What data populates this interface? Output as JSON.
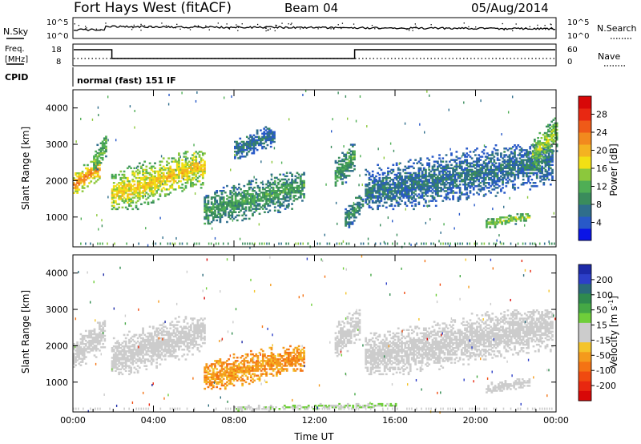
{
  "header": {
    "title": "Fort Hays West (fitACF)",
    "beam": "Beam 04",
    "date": "05/Aug/2014"
  },
  "noise_panel": {
    "left_label": "N.Sky",
    "left_ticks": [
      "10^5",
      "10^0"
    ],
    "right_ticks": [
      "10^5",
      "10^0"
    ],
    "right_label": "N.Search",
    "right_legend_line": "dotted"
  },
  "freq_panel": {
    "left_label_line1": "Freq.",
    "left_label_line2": "[MHz]",
    "left_ticks": [
      "18",
      "8"
    ],
    "right_ticks": [
      "60",
      "0"
    ],
    "right_label": "Nave",
    "cpid_label": "CPID",
    "cpid_text": "normal (fast) 151 IF"
  },
  "chart_data": [
    {
      "type": "heatmap",
      "name": "power",
      "ylabel": "Slant Range [km]",
      "xlabel": "Time UT",
      "xlim": [
        0,
        24
      ],
      "ylim": [
        180,
        4500
      ],
      "yticks": [
        "1000",
        "2000",
        "3000",
        "4000"
      ],
      "xticks": [
        "00:00",
        "04:00",
        "08:00",
        "12:00",
        "16:00",
        "20:00",
        "00:00"
      ],
      "colorbar": {
        "label": "Power [dB]",
        "ticks": [
          "4",
          "8",
          "12",
          "16",
          "20",
          "24",
          "28"
        ],
        "colors": [
          "#0a14e6",
          "#2859c8",
          "#2f6e8c",
          "#3a8c5c",
          "#4fae55",
          "#8cc83c",
          "#f2e014",
          "#f4b321",
          "#f28a1e",
          "#ef5a18",
          "#e82812",
          "#d80808"
        ]
      },
      "echo_regions": [
        {
          "t0": 0.0,
          "t1": 1.3,
          "r0": 1600,
          "r1": 2600,
          "level": 22
        },
        {
          "t0": 1.0,
          "t1": 1.6,
          "r0": 2200,
          "r1": 3200,
          "level": 12
        },
        {
          "t0": 1.9,
          "t1": 6.5,
          "r0": 1200,
          "r1": 2800,
          "level": 18
        },
        {
          "t0": 6.5,
          "t1": 11.5,
          "r0": 800,
          "r1": 2200,
          "level": 10
        },
        {
          "t0": 8.0,
          "t1": 10.0,
          "r0": 2600,
          "r1": 3500,
          "level": 6
        },
        {
          "t0": 13.0,
          "t1": 14.0,
          "r0": 1800,
          "r1": 3000,
          "level": 10
        },
        {
          "t0": 13.5,
          "t1": 14.4,
          "r0": 700,
          "r1": 1600,
          "level": 8
        },
        {
          "t0": 14.5,
          "t1": 23.8,
          "r0": 1200,
          "r1": 3000,
          "level": 6
        },
        {
          "t0": 20.5,
          "t1": 22.7,
          "r0": 700,
          "r1": 1100,
          "level": 14
        },
        {
          "t0": 22.8,
          "t1": 24.0,
          "r0": 2300,
          "r1": 3700,
          "level": 14
        }
      ]
    },
    {
      "type": "heatmap",
      "name": "velocity",
      "ylabel": "Slant Range [km]",
      "xlabel": "Time UT",
      "xlim": [
        0,
        24
      ],
      "ylim": [
        180,
        4500
      ],
      "yticks": [
        "1000",
        "2000",
        "3000",
        "4000"
      ],
      "xticks": [
        "00:00",
        "04:00",
        "08:00",
        "12:00",
        "16:00",
        "20:00",
        "00:00"
      ],
      "colorbar": {
        "label": "Velocity [m s",
        "label_sup": "-1",
        "label_end": "]",
        "ticks": [
          "200",
          "100",
          "50",
          "15",
          "-15",
          "-50",
          "-100",
          "-200"
        ],
        "colors": [
          "#1d2aa8",
          "#2d3fc8",
          "#2a6a7a",
          "#2f8a4e",
          "#45a845",
          "#6fce3a",
          "#cccccc",
          "#cccccc",
          "#f4c42a",
          "#f49a1c",
          "#f47314",
          "#f04a10",
          "#e82810",
          "#d80808"
        ]
      },
      "echo_regions": [
        {
          "t0": 0.0,
          "t1": 1.6,
          "r0": 1400,
          "r1": 2700,
          "vel": 0
        },
        {
          "t0": 1.9,
          "t1": 6.5,
          "r0": 1200,
          "r1": 2800,
          "vel": 0
        },
        {
          "t0": 6.5,
          "t1": 11.5,
          "r0": 800,
          "r1": 2000,
          "vel": -80
        },
        {
          "t0": 13.0,
          "t1": 14.2,
          "r0": 1700,
          "r1": 3000,
          "vel": 0
        },
        {
          "t0": 14.5,
          "t1": 23.8,
          "r0": 1200,
          "r1": 3000,
          "vel": 0
        },
        {
          "t0": 20.5,
          "t1": 22.7,
          "r0": 700,
          "r1": 1100,
          "vel": 0
        },
        {
          "t0": 8.0,
          "t1": 16.0,
          "r0": 200,
          "r1": 400,
          "vel": 30
        }
      ]
    }
  ]
}
